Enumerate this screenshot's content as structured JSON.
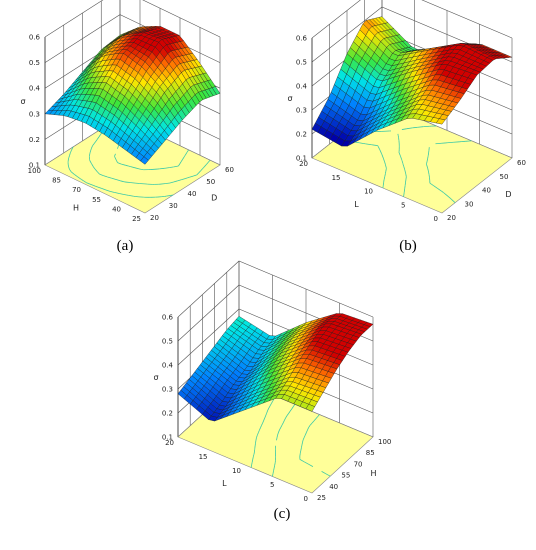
{
  "chart_data": [
    {
      "type": "surface",
      "panel_label": "(a)",
      "zlabel": "σ",
      "xlabel": "H",
      "ylabel": "D",
      "z_ticks": [
        "0.1",
        "0.2",
        "0.3",
        "0.4",
        "0.5",
        "0.6"
      ],
      "x_ticks": [
        "100",
        "85",
        "70",
        "55",
        "40",
        "25"
      ],
      "y_ticks": [
        "20",
        "30",
        "40",
        "50",
        "60"
      ],
      "zlim": [
        0.1,
        0.6
      ],
      "xlim": [
        100,
        25
      ],
      "ylim": [
        20,
        60
      ],
      "contour_floor_color": "#ffff99",
      "surface": [
        [
          0.3,
          0.33,
          0.37,
          0.41,
          0.42
        ],
        [
          0.33,
          0.4,
          0.47,
          0.5,
          0.49
        ],
        [
          0.34,
          0.44,
          0.52,
          0.55,
          0.53
        ],
        [
          0.33,
          0.42,
          0.5,
          0.56,
          0.53
        ],
        [
          0.31,
          0.38,
          0.45,
          0.49,
          0.46
        ],
        [
          0.29,
          0.33,
          0.37,
          0.4,
          0.38
        ]
      ]
    },
    {
      "type": "surface",
      "panel_label": "(b)",
      "zlabel": "σ",
      "xlabel": "L",
      "ylabel": "D",
      "z_ticks": [
        "0.1",
        "0.2",
        "0.3",
        "0.4",
        "0.5",
        "0.6"
      ],
      "x_ticks": [
        "20",
        "15",
        "10",
        "5",
        "0"
      ],
      "y_ticks": [
        "20",
        "30",
        "40",
        "50",
        "60"
      ],
      "zlim": [
        0.1,
        0.6
      ],
      "xlim": [
        20,
        0
      ],
      "ylim": [
        20,
        60
      ],
      "contour_floor_color": "#ffff99",
      "surface": [
        [
          0.22,
          0.3,
          0.42,
          0.5,
          0.46
        ],
        [
          0.2,
          0.26,
          0.36,
          0.42,
          0.38
        ],
        [
          0.33,
          0.38,
          0.46,
          0.5,
          0.44
        ],
        [
          0.44,
          0.49,
          0.55,
          0.58,
          0.52
        ],
        [
          0.47,
          0.51,
          0.56,
          0.57,
          0.52
        ]
      ]
    },
    {
      "type": "surface",
      "panel_label": "(c)",
      "zlabel": "σ",
      "xlabel": "L",
      "ylabel": "H",
      "z_ticks": [
        "0.1",
        "0.2",
        "0.3",
        "0.4",
        "0.5",
        "0.6"
      ],
      "x_ticks": [
        "20",
        "15",
        "10",
        "5",
        "0"
      ],
      "y_ticks": [
        "25",
        "40",
        "55",
        "70",
        "85",
        "100"
      ],
      "zlim": [
        0.1,
        0.6
      ],
      "xlim": [
        20,
        0
      ],
      "ylim": [
        25,
        100
      ],
      "contour_floor_color": "#ffff99",
      "surface": [
        [
          0.28,
          0.3,
          0.32,
          0.34,
          0.36,
          0.37
        ],
        [
          0.22,
          0.24,
          0.27,
          0.29,
          0.32,
          0.34
        ],
        [
          0.33,
          0.36,
          0.4,
          0.43,
          0.45,
          0.46
        ],
        [
          0.44,
          0.47,
          0.51,
          0.54,
          0.56,
          0.56
        ],
        [
          0.44,
          0.48,
          0.52,
          0.55,
          0.57,
          0.57
        ]
      ]
    }
  ]
}
